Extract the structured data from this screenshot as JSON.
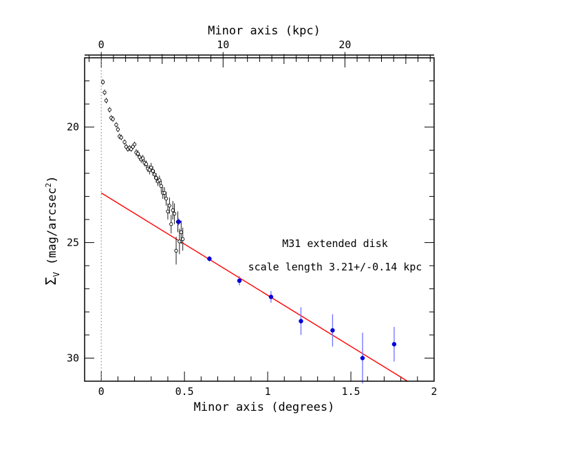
{
  "chart_data": {
    "type": "scatter",
    "title": "",
    "xlabel": "Minor axis (degrees)",
    "x2label": "Minor axis (kpc)",
    "ylabel": "Σ_V (mag/arcsec²)",
    "ylabel_parts": {
      "sym": "Σ",
      "sub": "V",
      "rest": " (mag/arcsec",
      "sup": "2",
      "close": ")"
    },
    "xlim": [
      -0.1,
      2.0
    ],
    "ylim": [
      31.0,
      17.0
    ],
    "y_inverted": true,
    "x_ticks": [
      "0",
      "0.5",
      "1",
      "1.5",
      "2"
    ],
    "x_tick_values": [
      0,
      0.5,
      1,
      1.5,
      2
    ],
    "y_ticks": [
      "20",
      "25",
      "30"
    ],
    "y_tick_values": [
      20,
      25,
      30
    ],
    "x2_ticks": [
      "0",
      "10",
      "20"
    ],
    "x2_tick_values_kpc": [
      0,
      10,
      20
    ],
    "kpc_per_degree": 13.66,
    "vertical_reference_line_x": 0,
    "annotations": [
      "M31 extended disk",
      "scale length 3.21+/-0.14 kpc"
    ],
    "colors": {
      "inner": "#000000",
      "outer": "#0000dd",
      "outer_err": "#6f6fff",
      "fit": "#ff0000",
      "refline": "#888888"
    },
    "fit_line": {
      "x": [
        0,
        1.84
      ],
      "y": [
        22.85,
        31.0
      ]
    },
    "series": [
      {
        "marker": "open-circle",
        "color": "#000000",
        "points": [
          {
            "x": 0.01,
            "y": 18.05,
            "err": 0.12
          },
          {
            "x": 0.02,
            "y": 18.5,
            "err": 0.12
          },
          {
            "x": 0.03,
            "y": 18.85,
            "err": 0.12
          },
          {
            "x": 0.05,
            "y": 19.25,
            "err": 0.12
          },
          {
            "x": 0.06,
            "y": 19.6,
            "err": 0.12
          },
          {
            "x": 0.07,
            "y": 19.65,
            "err": 0.12
          },
          {
            "x": 0.09,
            "y": 19.9,
            "err": 0.12
          },
          {
            "x": 0.1,
            "y": 20.1,
            "err": 0.12
          },
          {
            "x": 0.11,
            "y": 20.4,
            "err": 0.12
          },
          {
            "x": 0.12,
            "y": 20.45,
            "err": 0.12
          },
          {
            "x": 0.14,
            "y": 20.65,
            "err": 0.12
          },
          {
            "x": 0.15,
            "y": 20.85,
            "err": 0.12
          },
          {
            "x": 0.16,
            "y": 20.95,
            "err": 0.12
          },
          {
            "x": 0.17,
            "y": 20.9,
            "err": 0.12
          },
          {
            "x": 0.18,
            "y": 20.95,
            "err": 0.12
          },
          {
            "x": 0.19,
            "y": 20.85,
            "err": 0.12
          },
          {
            "x": 0.2,
            "y": 20.75,
            "err": 0.12
          },
          {
            "x": 0.21,
            "y": 21.1,
            "err": 0.15
          },
          {
            "x": 0.22,
            "y": 21.15,
            "err": 0.15
          },
          {
            "x": 0.23,
            "y": 21.3,
            "err": 0.15
          },
          {
            "x": 0.24,
            "y": 21.4,
            "err": 0.15
          },
          {
            "x": 0.25,
            "y": 21.35,
            "err": 0.15
          },
          {
            "x": 0.26,
            "y": 21.55,
            "err": 0.15
          },
          {
            "x": 0.27,
            "y": 21.6,
            "err": 0.15
          },
          {
            "x": 0.28,
            "y": 21.8,
            "err": 0.15
          },
          {
            "x": 0.29,
            "y": 21.85,
            "err": 0.2
          },
          {
            "x": 0.3,
            "y": 21.75,
            "err": 0.2
          },
          {
            "x": 0.31,
            "y": 21.9,
            "err": 0.2
          },
          {
            "x": 0.32,
            "y": 22.05,
            "err": 0.2
          },
          {
            "x": 0.33,
            "y": 22.2,
            "err": 0.2
          },
          {
            "x": 0.34,
            "y": 22.35,
            "err": 0.2
          },
          {
            "x": 0.35,
            "y": 22.3,
            "err": 0.2
          },
          {
            "x": 0.36,
            "y": 22.55,
            "err": 0.25
          },
          {
            "x": 0.37,
            "y": 22.85,
            "err": 0.25
          },
          {
            "x": 0.38,
            "y": 22.85,
            "err": 0.25
          },
          {
            "x": 0.39,
            "y": 23.1,
            "err": 0.3
          },
          {
            "x": 0.4,
            "y": 23.65,
            "err": 0.35
          },
          {
            "x": 0.41,
            "y": 23.4,
            "err": 0.35
          },
          {
            "x": 0.42,
            "y": 24.2,
            "err": 0.4
          },
          {
            "x": 0.43,
            "y": 23.6,
            "err": 0.4
          },
          {
            "x": 0.44,
            "y": 23.75,
            "err": 0.45
          },
          {
            "x": 0.45,
            "y": 25.35,
            "err": 0.6
          },
          {
            "x": 0.46,
            "y": 24.1,
            "err": 0.45
          },
          {
            "x": 0.47,
            "y": 24.95,
            "err": 0.55
          },
          {
            "x": 0.48,
            "y": 24.55,
            "err": 0.5
          },
          {
            "x": 0.49,
            "y": 24.85,
            "err": 0.5
          }
        ]
      },
      {
        "marker": "filled-circle",
        "color": "#0000dd",
        "points": [
          {
            "x": 0.465,
            "y": 24.1,
            "err": 0.15
          },
          {
            "x": 0.65,
            "y": 25.7,
            "err": 0.12
          },
          {
            "x": 0.83,
            "y": 26.65,
            "err": 0.2
          },
          {
            "x": 1.02,
            "y": 27.35,
            "err": 0.25
          },
          {
            "x": 1.2,
            "y": 28.4,
            "err": 0.6
          },
          {
            "x": 1.39,
            "y": 28.8,
            "err": 0.7
          },
          {
            "x": 1.57,
            "y": 30.0,
            "err": 1.1
          },
          {
            "x": 1.76,
            "y": 29.4,
            "err": 0.75
          }
        ]
      }
    ]
  }
}
